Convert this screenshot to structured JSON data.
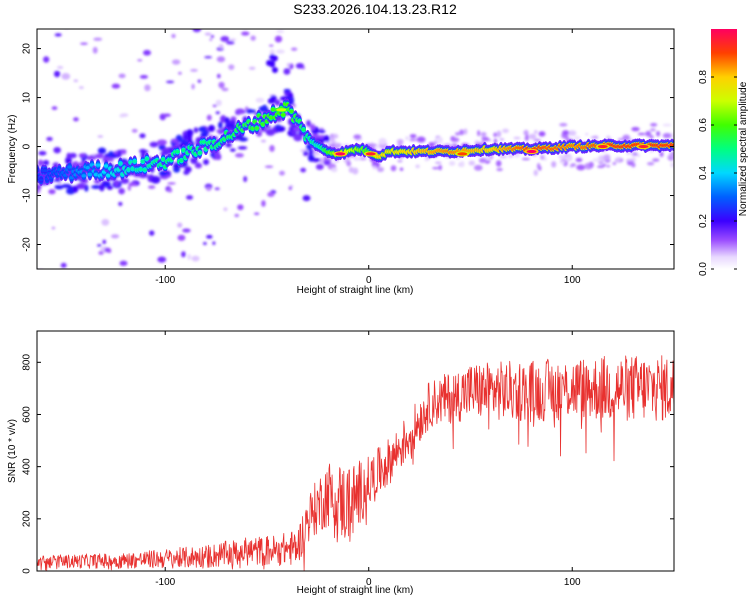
{
  "page": {
    "title": "S233.2026.104.13.23.R12"
  },
  "chart_data": [
    {
      "id": "spectrogram",
      "type": "heatmap",
      "title": "S233.2026.104.13.23.R12",
      "xlabel": "Height of straight line (km)",
      "ylabel": "Frequency (Hz)",
      "xlim": [
        -163,
        150
      ],
      "ylim": [
        -25,
        24
      ],
      "xticks": [
        -100,
        0,
        100
      ],
      "yticks": [
        -20,
        -10,
        0,
        10,
        20
      ],
      "colorbar": {
        "label": "Normalized spectral amplitude",
        "range": [
          0,
          1
        ],
        "ticks": [
          "0.0",
          "0.2",
          "0.4",
          "0.6",
          "0.8"
        ],
        "tick_values": [
          0.0,
          0.2,
          0.4,
          0.6,
          0.8
        ]
      },
      "ridge": {
        "description": "Dominant frequency vs height",
        "x": [
          -163,
          -140,
          -120,
          -100,
          -80,
          -60,
          -45,
          -40,
          -35,
          -30,
          -25,
          -20,
          -15,
          -10,
          -5,
          0,
          5,
          10,
          20,
          40,
          60,
          80,
          100,
          120,
          150
        ],
        "y": [
          -6,
          -5,
          -4.5,
          -3,
          0,
          4,
          7,
          8,
          5,
          2,
          0,
          -1,
          -1.5,
          -1,
          -0.5,
          -1,
          -2,
          -1,
          -1,
          -1,
          -0.5,
          -0.5,
          0,
          0.2,
          0.2
        ],
        "amplitude": [
          0.25,
          0.35,
          0.45,
          0.5,
          0.5,
          0.55,
          0.6,
          0.6,
          0.55,
          0.5,
          0.45,
          0.6,
          0.7,
          0.7,
          0.65,
          0.6,
          0.8,
          0.75,
          0.8,
          0.85,
          0.8,
          0.9,
          0.85,
          0.9,
          0.9
        ]
      },
      "hot_spots": [
        {
          "x": -43,
          "y": 7.5,
          "value": 0.7
        },
        {
          "x": -14,
          "y": -1.5,
          "value": 1.0
        },
        {
          "x": 1,
          "y": -1.5,
          "value": 0.95
        },
        {
          "x": 46,
          "y": -1.5,
          "value": 0.9
        },
        {
          "x": 80,
          "y": -1,
          "value": 1.0
        },
        {
          "x": 115,
          "y": 0,
          "value": 0.95
        },
        {
          "x": 135,
          "y": 0,
          "value": 0.95
        }
      ]
    },
    {
      "id": "snr",
      "type": "line",
      "xlabel": "Height of straight line (km)",
      "ylabel": "SNR (10 * v/v)",
      "xlim": [
        -163,
        150
      ],
      "ylim": [
        0,
        920
      ],
      "xticks": [
        -100,
        0,
        100
      ],
      "yticks": [
        0,
        200,
        400,
        600,
        800
      ],
      "series": [
        {
          "name": "SNR",
          "color": "#e8312f",
          "trend_x": [
            -163,
            -120,
            -80,
            -60,
            -45,
            -35,
            -30,
            -20,
            -10,
            0,
            10,
            20,
            30,
            50,
            80,
            100,
            120,
            150
          ],
          "trend_y": [
            35,
            40,
            55,
            75,
            80,
            90,
            200,
            300,
            250,
            340,
            420,
            520,
            640,
            690,
            690,
            700,
            700,
            700
          ],
          "noise": [
            25,
            30,
            45,
            55,
            60,
            70,
            90,
            130,
            160,
            100,
            90,
            90,
            90,
            110,
            120,
            120,
            130,
            130
          ]
        }
      ]
    }
  ]
}
